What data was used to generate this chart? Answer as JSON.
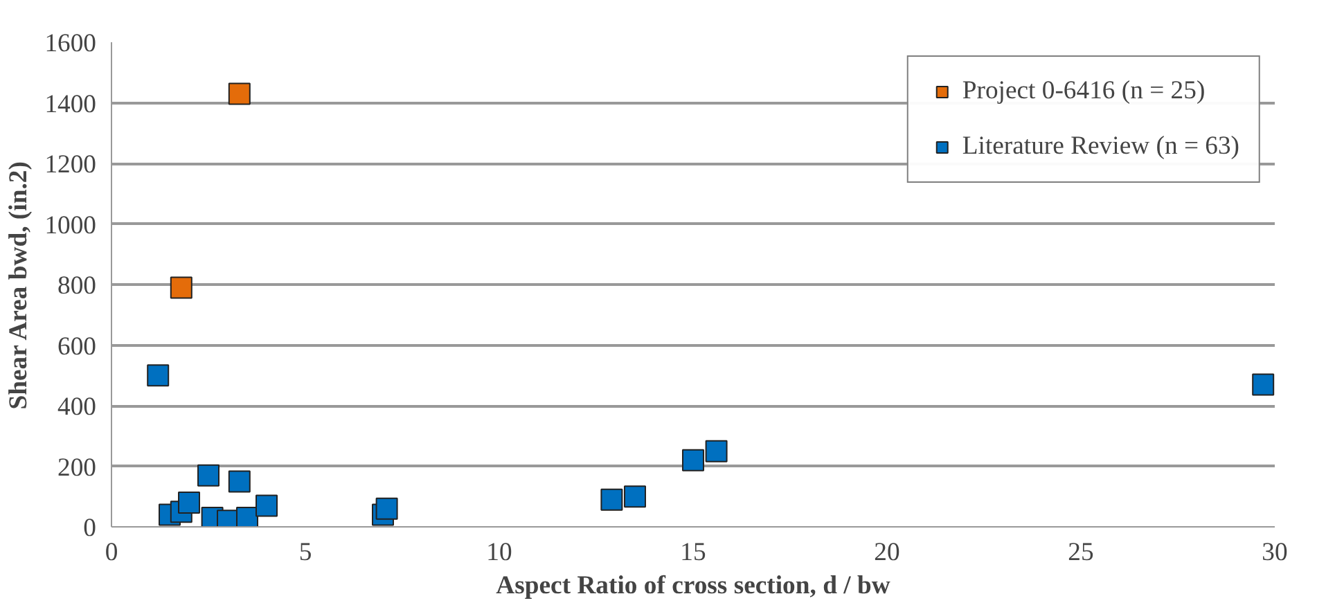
{
  "chart_data": {
    "type": "scatter",
    "xlabel": "Aspect Ratio of cross section, d / bw",
    "ylabel": "Shear Area bwd, (in.2)",
    "xlim": [
      0,
      30
    ],
    "xticks": [
      0,
      5,
      10,
      15,
      20,
      25,
      30
    ],
    "ylim": [
      0,
      1600
    ],
    "yticks": [
      0,
      200,
      400,
      600,
      800,
      1000,
      1200,
      1400,
      1600
    ],
    "grid": "y",
    "legend": "top right",
    "marker": "square",
    "series": [
      {
        "name": "Project 0-6416 (n = 25)",
        "color": "#e46c0a",
        "x": [
          3.3,
          1.8
        ],
        "values": [
          1430,
          790
        ]
      },
      {
        "name": "Literature Review (n = 63)",
        "color": "#0070c0",
        "x": [
          1.2,
          1.5,
          1.8,
          2.0,
          2.5,
          2.6,
          3.0,
          3.3,
          3.5,
          4.0,
          7.0,
          7.1,
          12.9,
          13.5,
          15.0,
          15.6,
          29.7
        ],
        "values": [
          500,
          40,
          50,
          80,
          170,
          30,
          20,
          150,
          30,
          70,
          40,
          60,
          90,
          100,
          220,
          250,
          470
        ]
      }
    ]
  }
}
